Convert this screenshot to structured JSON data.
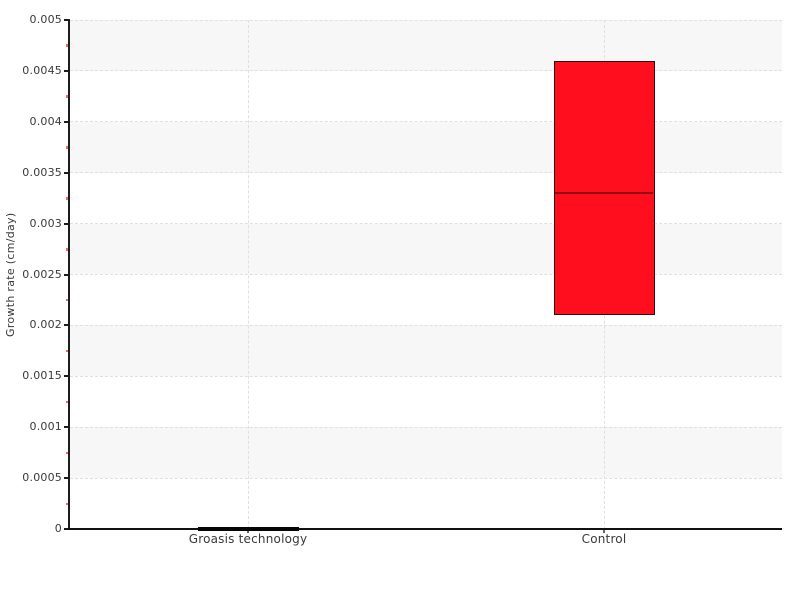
{
  "chart_data": {
    "type": "box",
    "title": "",
    "xlabel": "",
    "ylabel": "Growth rate (cm/day)",
    "ylim": [
      0,
      0.005
    ],
    "ytick_step": 0.0005,
    "minor_ytick_step": 0.00025,
    "yticks": [
      0,
      0.0005,
      0.001,
      0.0015,
      0.002,
      0.0025,
      0.003,
      0.0035,
      0.004,
      0.0045,
      0.005
    ],
    "ytick_labels": [
      "0",
      "0.0005",
      "0.001",
      "0.0015",
      "0.002",
      "0.0025",
      "0.003",
      "0.0035",
      "0.004",
      "0.0045",
      "0.005"
    ],
    "minor_yticks": [
      0.00025,
      0.00075,
      0.00125,
      0.00175,
      0.00225,
      0.00275,
      0.00325,
      0.00375,
      0.00425,
      0.00475
    ],
    "categories": [
      "Groasis technology",
      "Control"
    ],
    "series": [
      {
        "category": "Groasis technology",
        "low": 0,
        "high": 2e-05,
        "median": null,
        "fill": "#050505",
        "border": "#050505",
        "median_color": null
      },
      {
        "category": "Control",
        "low": 0.0021,
        "high": 0.0046,
        "median": 0.0033,
        "fill": "#ff0f1e",
        "border": "#33060b",
        "median_color": "#8f0d15"
      }
    ],
    "legend": null,
    "grid": {
      "horizontal_dashed_gridlines": true,
      "vertical_dashed_gridlines_at_categories": true,
      "alternating_horizontal_bands": true
    },
    "colors": {
      "background": "#ffffff",
      "band": "#f7f7f7",
      "gridline": "#e0e0e0",
      "axis": "#1c1c1c",
      "tick_label": "#3a3a3a",
      "minor_tick": "#f6686b",
      "category_tick": "#666666"
    }
  }
}
